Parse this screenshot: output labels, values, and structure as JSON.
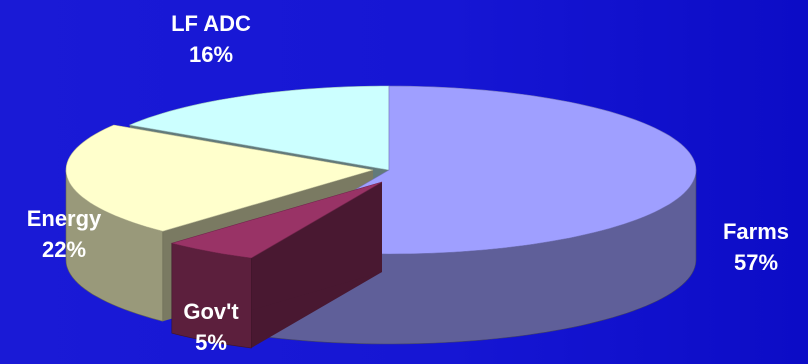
{
  "chart_data": {
    "type": "pie",
    "style": "3d-exploded",
    "slices": [
      {
        "label": "Farms",
        "value": 57,
        "percent_label": "57%",
        "color": "#9f9fff"
      },
      {
        "label": "Gov't",
        "value": 5,
        "percent_label": "5%",
        "color": "#993366"
      },
      {
        "label": "Energy",
        "value": 22,
        "percent_label": "22%",
        "color": "#ffffcc"
      },
      {
        "label": "LF ADC",
        "value": 16,
        "percent_label": "16%",
        "color": "#ccffff"
      }
    ]
  },
  "colors": {
    "background": "#1616d4",
    "label_text": "#ffffff"
  }
}
